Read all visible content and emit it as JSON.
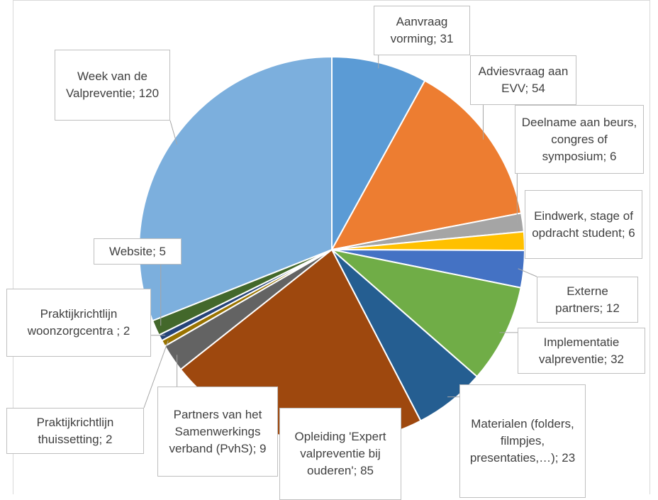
{
  "chart_data": {
    "type": "pie",
    "values": [
      31,
      54,
      6,
      6,
      12,
      32,
      23,
      85,
      9,
      2,
      2,
      5,
      120
    ],
    "value_labels": [
      "Aanvraag vorming; 31",
      "Adviesvraag aan EVV; 54",
      "Deelname aan beurs, congres of symposium; 6",
      "Eindwerk, stage of opdracht student; 6",
      "Externe partners; 12",
      "Implementatie valpreventie; 32",
      "Materialen (folders, filmpjes, presentaties,…); 23",
      "Opleiding 'Expert valpreventie bij ouderen'; 85",
      "Partners van het Samenwerkings verband (PvhS); 9",
      "Praktijkrichtlijn thuissetting; 2",
      "Praktijkrichtlijn woonzorgcentra ; 2",
      "Website; 5",
      "Week van de Valpreventie; 120"
    ],
    "colors": [
      "#5b9bd5",
      "#ed7d31",
      "#a5a5a5",
      "#ffc000",
      "#4472c4",
      "#70ad47",
      "#255e91",
      "#9e480e",
      "#636363",
      "#997300",
      "#264478",
      "#43682b",
      "#7cafdd"
    ]
  }
}
